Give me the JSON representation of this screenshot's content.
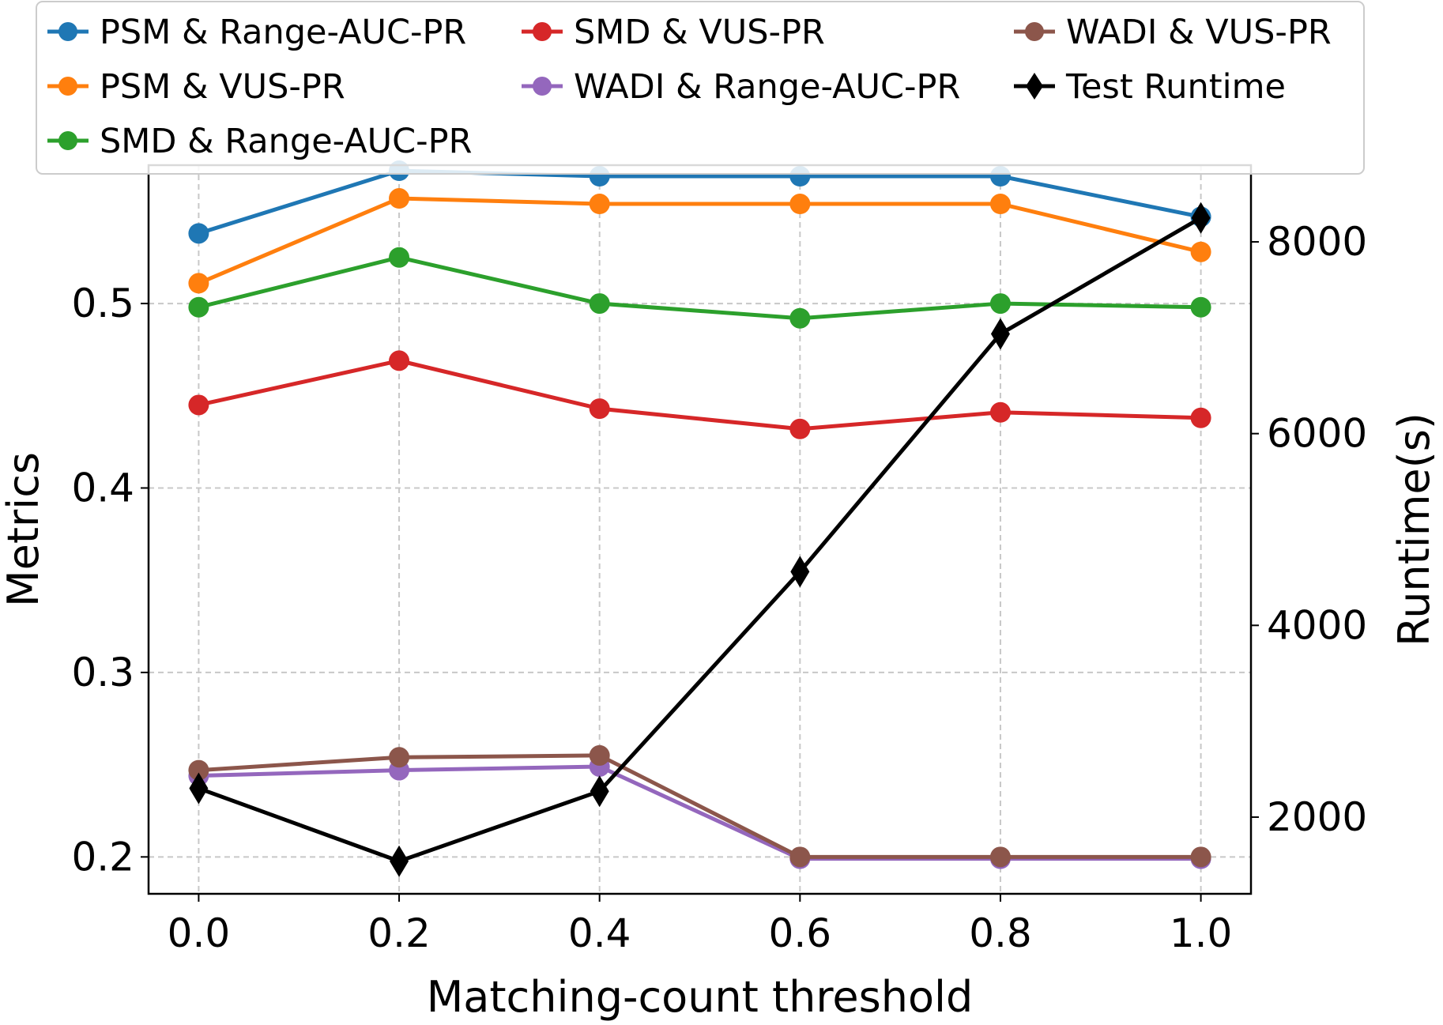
{
  "chart_data": {
    "type": "line",
    "xlabel": "Matching-count threshold",
    "ylabel": "Metrics",
    "y2label": "Runtime(s)",
    "x": [
      0.0,
      0.2,
      0.4,
      0.6,
      0.8,
      1.0
    ],
    "x_tick_labels": [
      "0.0",
      "0.2",
      "0.4",
      "0.6",
      "0.8",
      "1.0"
    ],
    "xlim": [
      -0.05,
      1.05
    ],
    "ylim": [
      0.18,
      0.575
    ],
    "y_ticks": [
      0.2,
      0.3,
      0.4,
      0.5
    ],
    "y_tick_labels": [
      "0.2",
      "0.3",
      "0.4",
      "0.5"
    ],
    "y2lim": [
      1200,
      8800
    ],
    "y2_ticks": [
      2000,
      4000,
      6000,
      8000
    ],
    "y2_tick_labels": [
      "2000",
      "4000",
      "6000",
      "8000"
    ],
    "grid": true,
    "legend_position": "top",
    "series": [
      {
        "name": "PSM & Range-AUC-PR",
        "color": "#1f77b4",
        "marker": "circle",
        "axis": "left",
        "values": [
          0.538,
          0.572,
          0.569,
          0.569,
          0.569,
          0.547
        ]
      },
      {
        "name": "PSM & VUS-PR",
        "color": "#ff7f0e",
        "marker": "circle",
        "axis": "left",
        "values": [
          0.511,
          0.557,
          0.554,
          0.554,
          0.554,
          0.528
        ]
      },
      {
        "name": "SMD & Range-AUC-PR",
        "color": "#2ca02c",
        "marker": "circle",
        "axis": "left",
        "values": [
          0.498,
          0.525,
          0.5,
          0.492,
          0.5,
          0.498
        ]
      },
      {
        "name": "SMD & VUS-PR",
        "color": "#d62728",
        "marker": "circle",
        "axis": "left",
        "values": [
          0.445,
          0.469,
          0.443,
          0.432,
          0.441,
          0.438
        ]
      },
      {
        "name": "WADI & Range-AUC-PR",
        "color": "#9467bd",
        "marker": "circle",
        "axis": "left",
        "values": [
          0.244,
          0.247,
          0.249,
          0.199,
          0.199,
          0.199
        ]
      },
      {
        "name": "WADI & VUS-PR",
        "color": "#8c564b",
        "marker": "circle",
        "axis": "left",
        "values": [
          0.247,
          0.254,
          0.255,
          0.2,
          0.2,
          0.2
        ]
      },
      {
        "name": "Test Runtime",
        "color": "#000000",
        "marker": "diamond",
        "axis": "right",
        "values": [
          2300,
          1540,
          2270,
          4560,
          7040,
          8250
        ]
      }
    ]
  }
}
